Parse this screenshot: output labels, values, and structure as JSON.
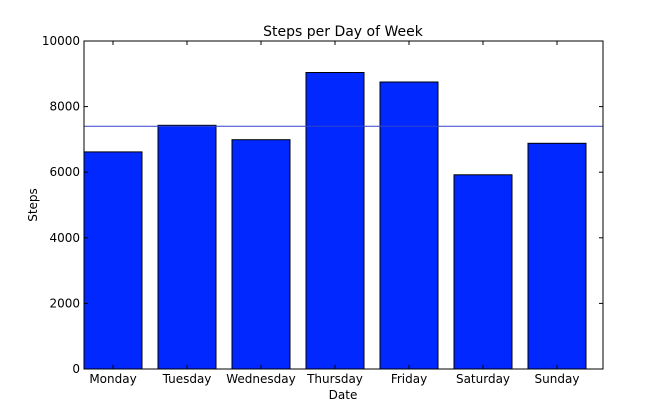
{
  "chart_data": {
    "type": "bar",
    "title": "Steps per Day of Week",
    "xlabel": "Date",
    "ylabel": "Steps",
    "categories": [
      "Monday",
      "Tuesday",
      "Wednesday",
      "Thursday",
      "Friday",
      "Saturday",
      "Sunday"
    ],
    "values": [
      6620,
      7430,
      6990,
      9040,
      8750,
      5920,
      6880
    ],
    "ylim": [
      0,
      10000
    ],
    "yticks": [
      0,
      2000,
      4000,
      6000,
      8000,
      10000
    ],
    "reference_line": 7400,
    "grid": false,
    "colors": {
      "bar": "#0028ff",
      "bar_edge": "#000000",
      "reference_line": "#3344cc",
      "axis": "#000000"
    }
  }
}
